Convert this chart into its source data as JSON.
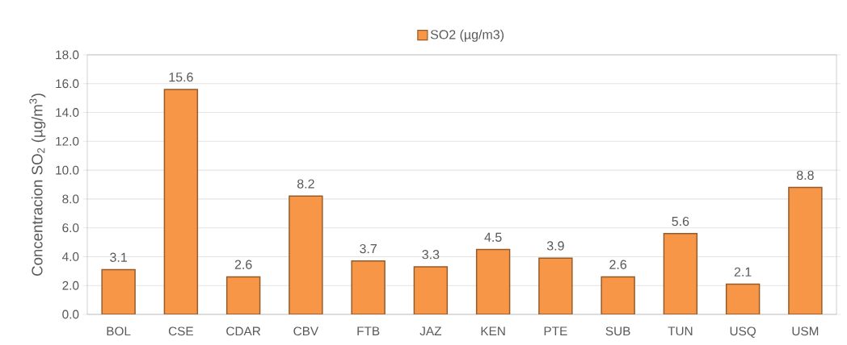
{
  "chart_data": {
    "type": "bar",
    "ylabel": "Concentracion SO$_{2}$ (µg/m$^{3}$)",
    "categories": [
      "BOL",
      "CSE",
      "CDAR",
      "CBV",
      "FTB",
      "JAZ",
      "KEN",
      "PTE",
      "SUB",
      "TUN",
      "USQ",
      "USM"
    ],
    "series": [
      {
        "name": "SO2 (µg/m3)",
        "color": "#f79646",
        "values": [
          3.1,
          15.6,
          2.6,
          8.2,
          3.7,
          3.3,
          4.5,
          3.9,
          2.6,
          5.6,
          2.1,
          8.8
        ]
      }
    ],
    "ylim": [
      0,
      18
    ],
    "yticks": [
      {
        "value": 0,
        "label": "0.0"
      },
      {
        "value": 2,
        "label": "2.0"
      },
      {
        "value": 4,
        "label": "4.0"
      },
      {
        "value": 6,
        "label": "6.0"
      },
      {
        "value": 8,
        "label": "8.0"
      },
      {
        "value": 10,
        "label": "10.0"
      },
      {
        "value": 12,
        "label": "12.0"
      },
      {
        "value": 14,
        "label": "14.0"
      },
      {
        "value": 16,
        "label": "16.0"
      },
      {
        "value": 18,
        "label": "18.0"
      }
    ],
    "grid": "y",
    "legend": "top",
    "data_labels": true
  }
}
